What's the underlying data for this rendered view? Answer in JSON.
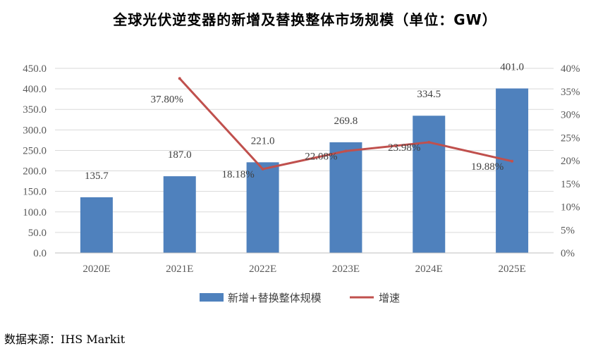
{
  "title": "全球光伏逆变器的新增及替换整体市场规模（单位：GW）",
  "source": "数据来源：IHS Markit",
  "colors": {
    "bar": "#4F81BD",
    "line": "#C0504D",
    "grid": "#D9D9D9"
  },
  "chart_data": {
    "type": "bar",
    "categories": [
      "2020E",
      "2021E",
      "2022E",
      "2023E",
      "2024E",
      "2025E"
    ],
    "series": [
      {
        "name": "新增+替换整体规模",
        "type": "bar",
        "axis": "left",
        "values": [
          135.7,
          187.0,
          221.0,
          269.8,
          334.5,
          401.0
        ],
        "labels": [
          "135.7",
          "187.0",
          "221.0",
          "269.8",
          "334.5",
          "401.0"
        ]
      },
      {
        "name": "增速",
        "type": "line",
        "axis": "right",
        "values": [
          null,
          37.8,
          18.18,
          22.08,
          23.98,
          19.88
        ],
        "labels": [
          "",
          "37.80%",
          "18.18%",
          "22.08%",
          "23.98%",
          "19.88%"
        ]
      }
    ],
    "y_left": {
      "min": 0,
      "max": 450,
      "step": 50,
      "ticks": [
        "0.0",
        "50.0",
        "100.0",
        "150.0",
        "200.0",
        "250.0",
        "300.0",
        "350.0",
        "400.0",
        "450.0"
      ]
    },
    "y_right": {
      "min": 0,
      "max": 40,
      "step": 5,
      "ticks": [
        "0%",
        "5%",
        "10%",
        "15%",
        "20%",
        "25%",
        "30%",
        "35%",
        "40%"
      ]
    },
    "grid": true,
    "legend_position": "bottom"
  }
}
